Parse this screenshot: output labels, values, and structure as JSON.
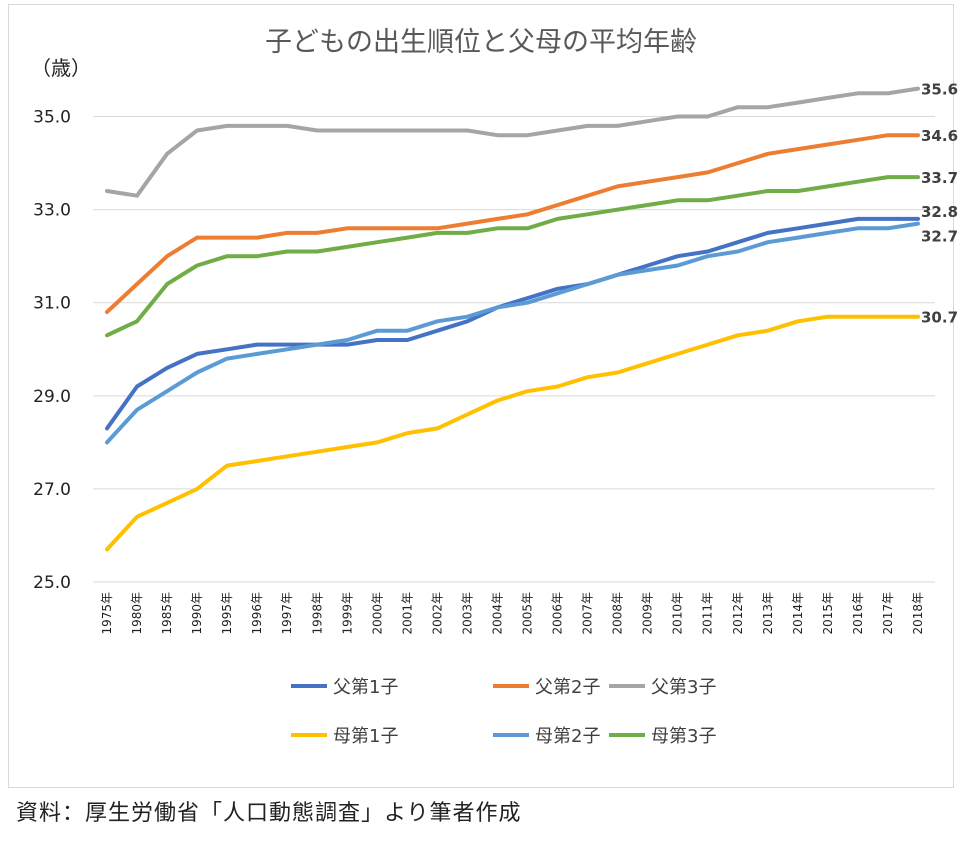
{
  "chart_data": {
    "type": "line",
    "title": "子どもの出生順位と父母の平均年齢",
    "ylabel": "（歳）",
    "xlabel": "",
    "ylim": [
      25.0,
      36.0
    ],
    "yticks": [
      25.0,
      27.0,
      29.0,
      31.0,
      33.0,
      35.0
    ],
    "ytick_labels": [
      "25.0",
      "27.0",
      "29.0",
      "31.0",
      "33.0",
      "35.0"
    ],
    "grid": true,
    "legend_position": "bottom",
    "categories": [
      "1975年",
      "1980年",
      "1985年",
      "1990年",
      "1995年",
      "1996年",
      "1997年",
      "1998年",
      "1999年",
      "2000年",
      "2001年",
      "2002年",
      "2003年",
      "2004年",
      "2005年",
      "2006年",
      "2007年",
      "2008年",
      "2009年",
      "2010年",
      "2011年",
      "2012年",
      "2013年",
      "2014年",
      "2015年",
      "2016年",
      "2017年",
      "2018年"
    ],
    "series": [
      {
        "name": "父第1子",
        "color": "#4472c4",
        "end_label": "32.8",
        "values": [
          28.3,
          29.2,
          29.6,
          29.9,
          30.0,
          30.1,
          30.1,
          30.1,
          30.1,
          30.2,
          30.2,
          30.4,
          30.6,
          30.9,
          31.1,
          31.3,
          31.4,
          31.6,
          31.8,
          32.0,
          32.1,
          32.3,
          32.5,
          32.6,
          32.7,
          32.8,
          32.8,
          32.8
        ]
      },
      {
        "name": "父第2子",
        "color": "#ed7d31",
        "end_label": "34.6",
        "values": [
          30.8,
          31.4,
          32.0,
          32.4,
          32.4,
          32.4,
          32.5,
          32.5,
          32.6,
          32.6,
          32.6,
          32.6,
          32.7,
          32.8,
          32.9,
          33.1,
          33.3,
          33.5,
          33.6,
          33.7,
          33.8,
          34.0,
          34.2,
          34.3,
          34.4,
          34.5,
          34.6,
          34.6
        ]
      },
      {
        "name": "父第3子",
        "color": "#a5a5a5",
        "end_label": "35.6",
        "values": [
          33.4,
          33.3,
          34.2,
          34.7,
          34.8,
          34.8,
          34.8,
          34.7,
          34.7,
          34.7,
          34.7,
          34.7,
          34.7,
          34.6,
          34.6,
          34.7,
          34.8,
          34.8,
          34.9,
          35.0,
          35.0,
          35.2,
          35.2,
          35.3,
          35.4,
          35.5,
          35.5,
          35.6
        ]
      },
      {
        "name": "母第1子",
        "color": "#ffc000",
        "end_label": "30.7",
        "values": [
          25.7,
          26.4,
          26.7,
          27.0,
          27.5,
          27.6,
          27.7,
          27.8,
          27.9,
          28.0,
          28.2,
          28.3,
          28.6,
          28.9,
          29.1,
          29.2,
          29.4,
          29.5,
          29.7,
          29.9,
          30.1,
          30.3,
          30.4,
          30.6,
          30.7,
          30.7,
          30.7,
          30.7
        ]
      },
      {
        "name": "母第2子",
        "color": "#5b9bd5",
        "end_label": "32.7",
        "values": [
          28.0,
          28.7,
          29.1,
          29.5,
          29.8,
          29.9,
          30.0,
          30.1,
          30.2,
          30.4,
          30.4,
          30.6,
          30.7,
          30.9,
          31.0,
          31.2,
          31.4,
          31.6,
          31.7,
          31.8,
          32.0,
          32.1,
          32.3,
          32.4,
          32.5,
          32.6,
          32.6,
          32.7
        ]
      },
      {
        "name": "母第3子",
        "color": "#70ad47",
        "end_label": "33.7",
        "values": [
          30.3,
          30.6,
          31.4,
          31.8,
          32.0,
          32.0,
          32.1,
          32.1,
          32.2,
          32.3,
          32.4,
          32.5,
          32.5,
          32.6,
          32.6,
          32.8,
          32.9,
          33.0,
          33.1,
          33.2,
          33.2,
          33.3,
          33.4,
          33.4,
          33.5,
          33.6,
          33.7,
          33.7
        ]
      }
    ]
  },
  "source_note": "資料：厚生労働省「人口動態調査」より筆者作成"
}
